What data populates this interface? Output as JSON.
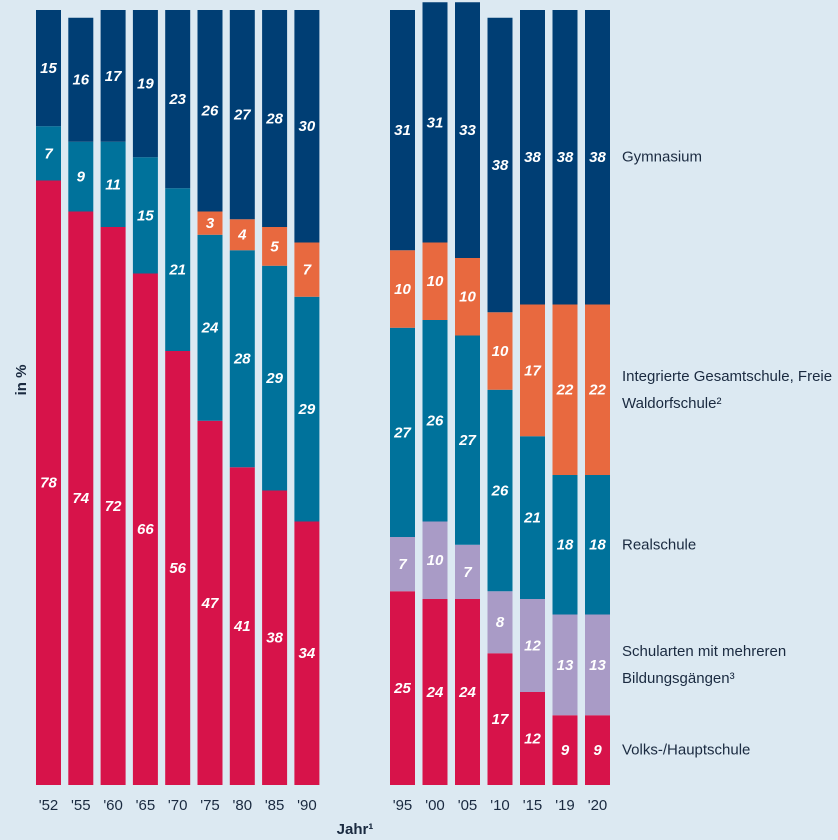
{
  "chart_data": {
    "type": "stacked_bar",
    "y_label": "in %",
    "x_label": "Jahr¹",
    "categories": [
      "'52",
      "'55",
      "'60",
      "'65",
      "'70",
      "'75",
      "'80",
      "'85",
      "'90",
      "'95",
      "'00",
      "'05",
      "'10",
      "'15",
      "'19",
      "'20"
    ],
    "ylim": [
      0,
      100
    ],
    "series": [
      {
        "name": "Volks-/Hauptschule",
        "color": "#d7134a",
        "values": [
          78,
          74,
          72,
          66,
          56,
          47,
          41,
          38,
          34,
          25,
          24,
          24,
          17,
          12,
          9,
          9
        ]
      },
      {
        "name": "Schularten mit mehreren Bildungsgängen³",
        "color": "#a99bc6",
        "values": [
          null,
          null,
          null,
          null,
          null,
          null,
          null,
          null,
          null,
          7,
          10,
          7,
          8,
          12,
          13,
          13
        ]
      },
      {
        "name": "Realschule",
        "color": "#00729b",
        "values": [
          7,
          9,
          11,
          15,
          21,
          24,
          28,
          29,
          29,
          27,
          26,
          27,
          26,
          21,
          18,
          18
        ]
      },
      {
        "name": "Integrierte Gesamtschule, Freie Waldorfschule²",
        "color": "#e8693f",
        "values": [
          null,
          null,
          null,
          null,
          null,
          3,
          4,
          5,
          7,
          10,
          10,
          10,
          10,
          17,
          22,
          22
        ]
      },
      {
        "name": "Gymnasium",
        "color": "#003e74",
        "values": [
          15,
          16,
          17,
          19,
          23,
          26,
          27,
          28,
          30,
          31,
          31,
          33,
          38,
          38,
          38,
          38
        ]
      }
    ]
  }
}
